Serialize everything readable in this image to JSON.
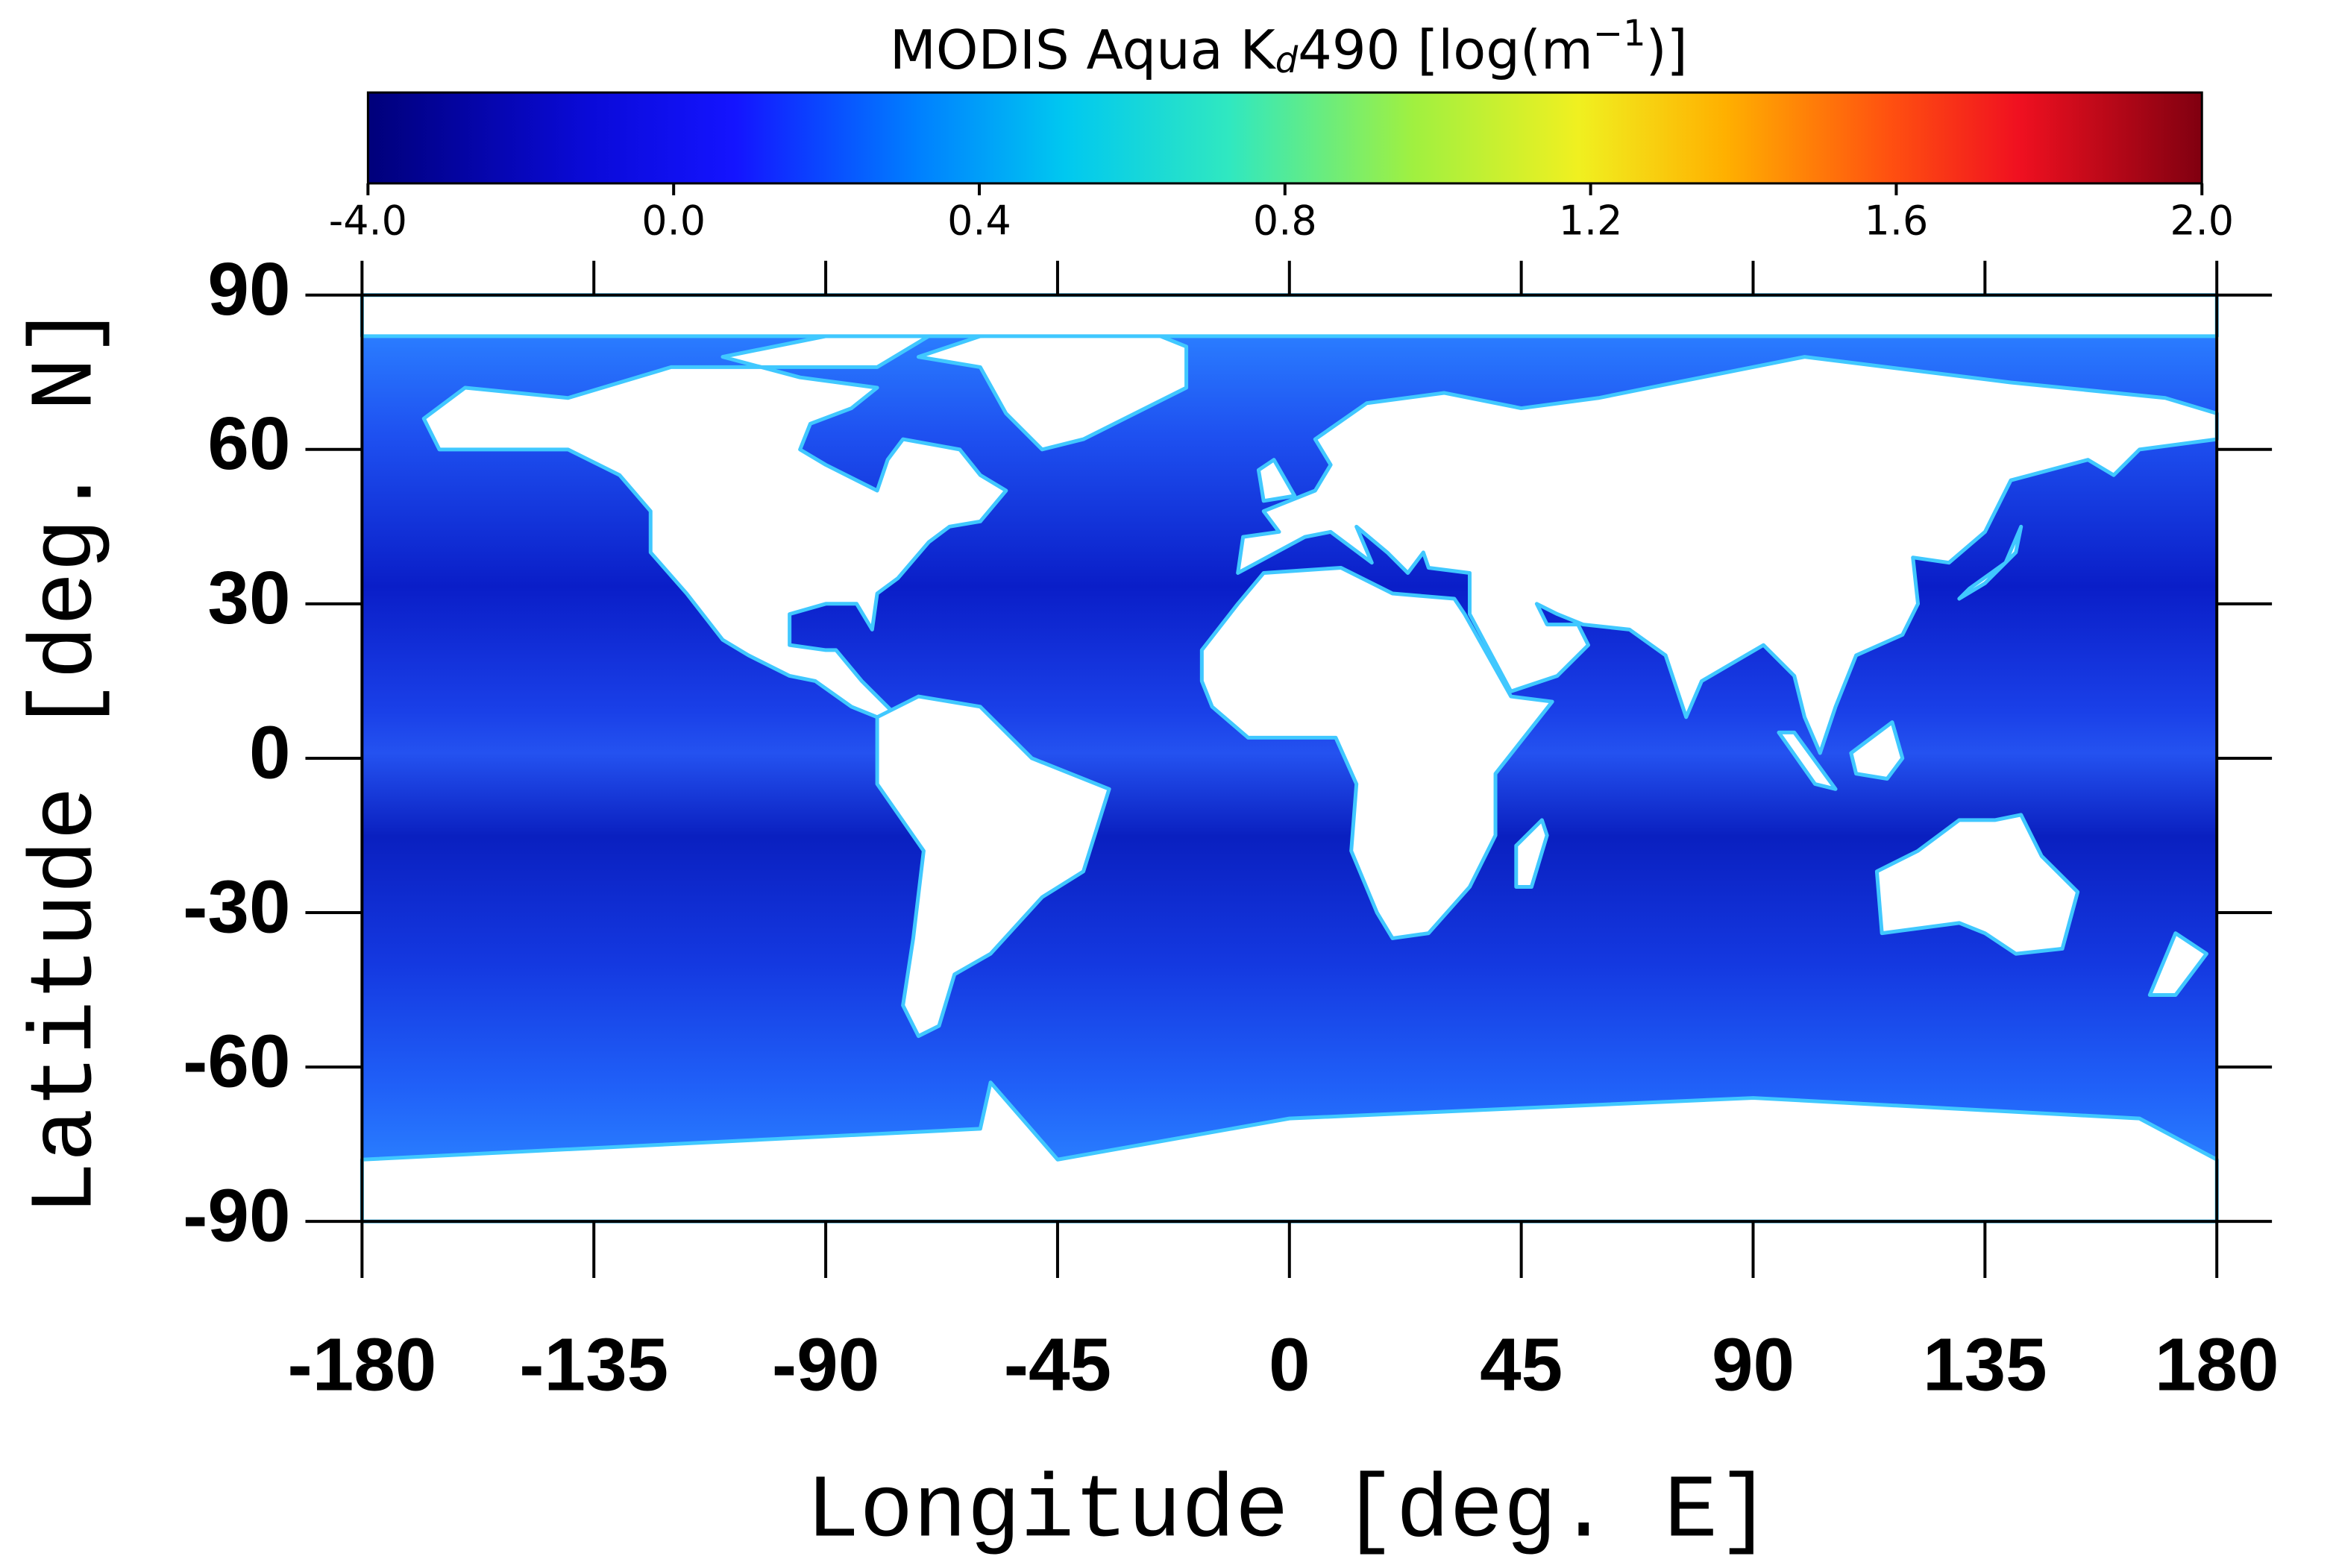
{
  "chart_data": {
    "type": "map",
    "title_parts": [
      "MODIS Aqua K",
      "d",
      "490 [log(m",
      "−1",
      ")]"
    ],
    "xlabel": "Longitude [deg. E]",
    "ylabel": "Latitude [deg. N]",
    "xlim": [
      -180,
      180
    ],
    "ylim": [
      -90,
      90
    ],
    "xticks": [
      -180,
      -135,
      -90,
      -45,
      0,
      45,
      90,
      135,
      180
    ],
    "yticks": [
      -90,
      -60,
      -30,
      0,
      30,
      60,
      90
    ],
    "colorbar_ticks": [
      {
        "value": -4,
        "label": "-4.0"
      },
      {
        "value": 0,
        "label": "0.0"
      },
      0.4,
      0.8,
      1.2,
      1.6,
      {
        "value": 2,
        "label": "2.0"
      }
    ]
  }
}
